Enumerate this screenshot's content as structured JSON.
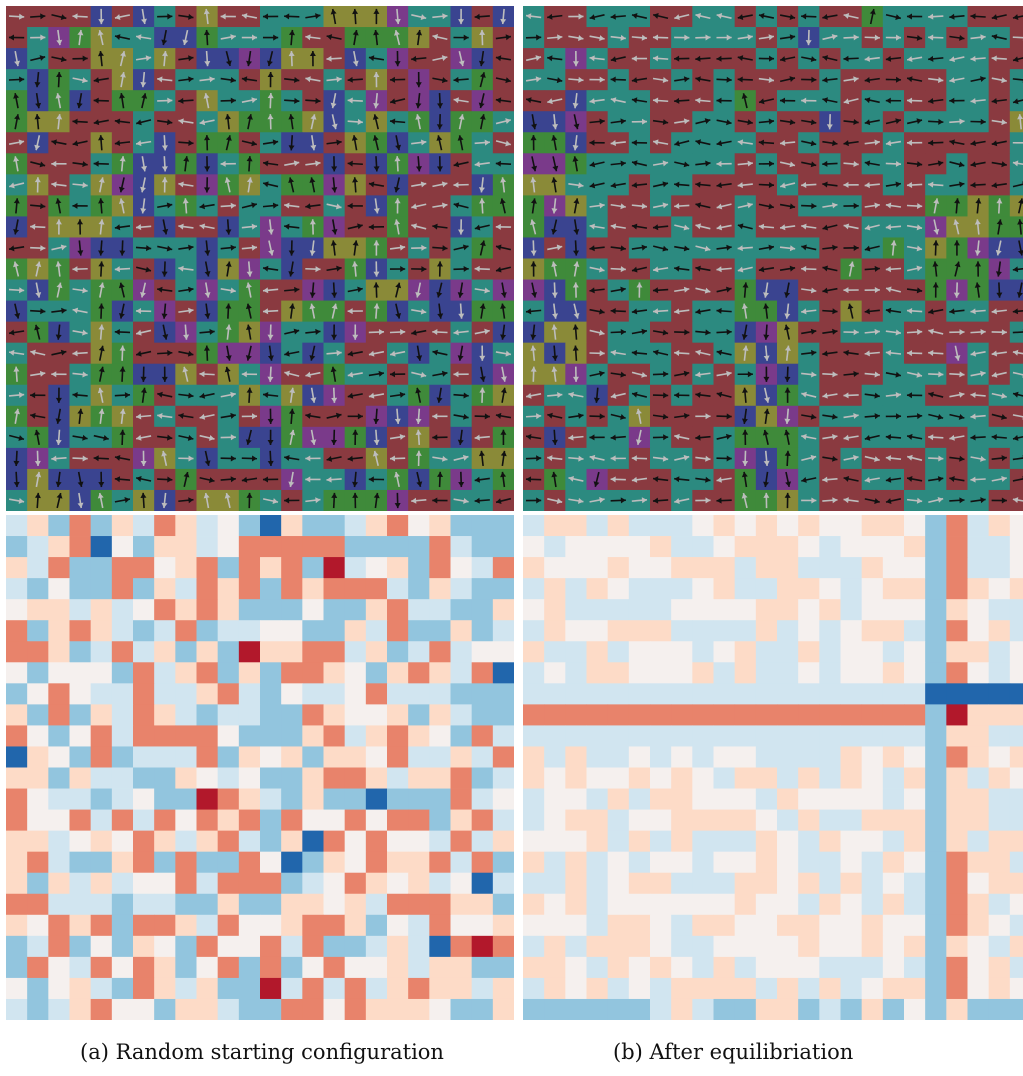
{
  "figure": {
    "grid_size": 24,
    "panels": [
      {
        "id": "a",
        "caption": "(a) Random starting configuration",
        "lattice_seed": 7,
        "lattice_mode": "random",
        "heatmap_seed": 13,
        "heatmap_mode": "random"
      },
      {
        "id": "b",
        "caption": "(b) After equilibriation",
        "lattice_seed": 29,
        "lattice_mode": "equilibrated",
        "heatmap_seed": 41,
        "heatmap_mode": "equilibrated"
      }
    ],
    "lattice_colors": {
      "teal": "#2c8a80",
      "maroon": "#8a3a40",
      "green": "#3f8a3a",
      "purple": "#7a3a8a",
      "navy": "#3a4490",
      "olive": "#8a8a38",
      "arrow_dark": "#111111",
      "arrow_light": "#bdbdbd"
    },
    "heatmap_colors": {
      "strong_red": "#b2182b",
      "mid_red": "#e8836b",
      "light_red": "#fddbc7",
      "neutral": "#f5f0ee",
      "light_blue": "#d1e5f0",
      "mid_blue": "#92c5de",
      "strong_blue": "#2166ac"
    }
  }
}
